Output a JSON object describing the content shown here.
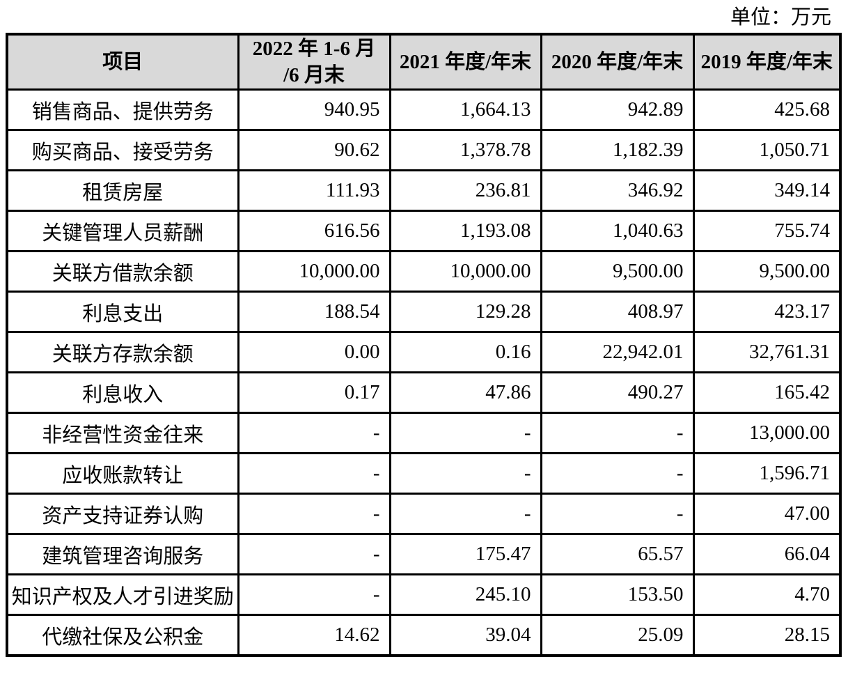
{
  "unit_label": "单位：万元",
  "table": {
    "columns": [
      "项目",
      "2022 年 1-6 月\n/6 月末",
      "2021 年度/年末",
      "2020 年度/年末",
      "2019 年度/年末"
    ],
    "rows": [
      [
        "销售商品、提供劳务",
        "940.95",
        "1,664.13",
        "942.89",
        "425.68"
      ],
      [
        "购买商品、接受劳务",
        "90.62",
        "1,378.78",
        "1,182.39",
        "1,050.71"
      ],
      [
        "租赁房屋",
        "111.93",
        "236.81",
        "346.92",
        "349.14"
      ],
      [
        "关键管理人员薪酬",
        "616.56",
        "1,193.08",
        "1,040.63",
        "755.74"
      ],
      [
        "关联方借款余额",
        "10,000.00",
        "10,000.00",
        "9,500.00",
        "9,500.00"
      ],
      [
        "利息支出",
        "188.54",
        "129.28",
        "408.97",
        "423.17"
      ],
      [
        "关联方存款余额",
        "0.00",
        "0.16",
        "22,942.01",
        "32,761.31"
      ],
      [
        "利息收入",
        "0.17",
        "47.86",
        "490.27",
        "165.42"
      ],
      [
        "非经营性资金往来",
        "-",
        "-",
        "-",
        "13,000.00"
      ],
      [
        "应收账款转让",
        "-",
        "-",
        "-",
        "1,596.71"
      ],
      [
        "资产支持证券认购",
        "-",
        "-",
        "-",
        "47.00"
      ],
      [
        "建筑管理咨询服务",
        "-",
        "175.47",
        "65.57",
        "66.04"
      ],
      [
        "知识产权及人才引进奖励",
        "-",
        "245.10",
        "153.50",
        "4.70"
      ],
      [
        "代缴社保及公积金",
        "14.62",
        "39.04",
        "25.09",
        "28.15"
      ]
    ],
    "colors": {
      "header_background": "#d9d9d9",
      "border": "#000000",
      "text": "#000000"
    }
  }
}
